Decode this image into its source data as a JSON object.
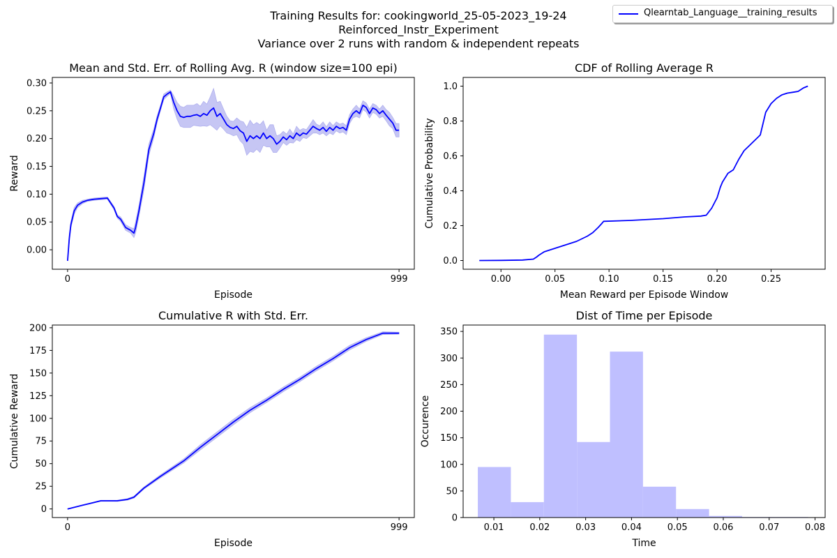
{
  "figure": {
    "title_lines": [
      "Training Results for: cookingworld_25-05-2023_19-24",
      "Reinforced_Instr_Experiment",
      "Variance over 2 runs with random & independent repeats"
    ],
    "legend": {
      "label": "Qlearntab_Language__training_results",
      "color": "#0000ff"
    },
    "line_color": "#0000ff",
    "band_color": "#c6c6f4",
    "hist_color": "#bfbfff"
  },
  "chart_data": [
    {
      "id": "rolling",
      "type": "line",
      "title": "Mean and Std. Err. of Rolling Avg. R (window size=100 epi)",
      "xlabel": "Episode",
      "ylabel": "Reward",
      "xlim": [
        -46,
        1045
      ],
      "ylim": [
        -0.035,
        0.31
      ],
      "xticks": [
        0,
        999
      ],
      "xtick_labels": [
        "0",
        "999"
      ],
      "yticks": [
        0.0,
        0.05,
        0.1,
        0.15,
        0.2,
        0.25,
        0.3
      ],
      "ytick_labels": [
        "0.00",
        "0.05",
        "0.10",
        "0.15",
        "0.20",
        "0.25",
        "0.30"
      ],
      "series": [
        {
          "x": [
            0,
            5,
            10,
            20,
            30,
            45,
            60,
            80,
            100,
            120,
            140,
            150,
            160,
            175,
            190,
            200,
            205,
            215,
            230,
            245,
            260,
            270,
            280,
            290,
            300,
            310,
            320,
            330,
            340,
            350,
            360,
            370,
            380,
            390,
            400,
            410,
            420,
            430,
            440,
            450,
            460,
            470,
            480,
            490,
            500,
            510,
            520,
            530,
            540,
            550,
            560,
            570,
            580,
            590,
            600,
            610,
            620,
            630,
            640,
            650,
            660,
            670,
            680,
            690,
            700,
            710,
            720,
            730,
            740,
            750,
            760,
            770,
            780,
            790,
            800,
            810,
            820,
            830,
            840,
            850,
            860,
            870,
            880,
            890,
            900,
            910,
            920,
            930,
            940,
            950,
            960,
            970,
            980,
            990,
            999
          ],
          "y": [
            -0.02,
            0.02,
            0.045,
            0.07,
            0.08,
            0.086,
            0.089,
            0.091,
            0.092,
            0.093,
            0.075,
            0.06,
            0.055,
            0.04,
            0.035,
            0.03,
            0.04,
            0.07,
            0.12,
            0.18,
            0.21,
            0.235,
            0.255,
            0.275,
            0.28,
            0.284,
            0.265,
            0.25,
            0.24,
            0.238,
            0.24,
            0.24,
            0.242,
            0.243,
            0.24,
            0.245,
            0.242,
            0.25,
            0.255,
            0.24,
            0.245,
            0.235,
            0.225,
            0.22,
            0.218,
            0.222,
            0.214,
            0.21,
            0.195,
            0.205,
            0.2,
            0.205,
            0.2,
            0.21,
            0.2,
            0.205,
            0.2,
            0.19,
            0.195,
            0.203,
            0.198,
            0.205,
            0.2,
            0.21,
            0.205,
            0.21,
            0.208,
            0.215,
            0.222,
            0.218,
            0.215,
            0.22,
            0.213,
            0.22,
            0.215,
            0.222,
            0.218,
            0.22,
            0.215,
            0.235,
            0.245,
            0.25,
            0.245,
            0.26,
            0.256,
            0.245,
            0.255,
            0.252,
            0.245,
            0.25,
            0.242,
            0.235,
            0.228,
            0.215,
            0.215
          ],
          "err": [
            0.0,
            0.008,
            0.006,
            0.006,
            0.004,
            0.003,
            0.002,
            0.002,
            0.002,
            0.002,
            0.003,
            0.003,
            0.004,
            0.005,
            0.005,
            0.008,
            0.01,
            0.01,
            0.012,
            0.01,
            0.008,
            0.006,
            0.005,
            0.005,
            0.004,
            0.003,
            0.012,
            0.015,
            0.018,
            0.018,
            0.02,
            0.02,
            0.018,
            0.02,
            0.018,
            0.022,
            0.02,
            0.025,
            0.035,
            0.025,
            0.022,
            0.018,
            0.015,
            0.012,
            0.013,
            0.015,
            0.018,
            0.02,
            0.025,
            0.028,
            0.025,
            0.024,
            0.025,
            0.022,
            0.015,
            0.02,
            0.025,
            0.015,
            0.012,
            0.01,
            0.01,
            0.012,
            0.008,
            0.012,
            0.01,
            0.008,
            0.008,
            0.01,
            0.012,
            0.008,
            0.008,
            0.01,
            0.008,
            0.01,
            0.008,
            0.008,
            0.008,
            0.008,
            0.008,
            0.008,
            0.008,
            0.01,
            0.008,
            0.008,
            0.008,
            0.008,
            0.008,
            0.008,
            0.008,
            0.01,
            0.01,
            0.012,
            0.01,
            0.012,
            0.012
          ]
        }
      ]
    },
    {
      "id": "cdf",
      "type": "line",
      "title": "CDF of Rolling Average R",
      "xlabel": "Mean Reward per Episode Window",
      "ylabel": "Cumulative Probability",
      "xlim": [
        -0.035,
        0.3
      ],
      "ylim": [
        -0.05,
        1.05
      ],
      "xticks": [
        0.0,
        0.05,
        0.1,
        0.15,
        0.2,
        0.25
      ],
      "xtick_labels": [
        "0.00",
        "0.05",
        "0.10",
        "0.15",
        "0.20",
        "0.25"
      ],
      "yticks": [
        0.0,
        0.2,
        0.4,
        0.6,
        0.8,
        1.0
      ],
      "ytick_labels": [
        "0.0",
        "0.2",
        "0.4",
        "0.6",
        "0.8",
        "1.0"
      ],
      "series": [
        {
          "x": [
            -0.02,
            0.0,
            0.02,
            0.03,
            0.033,
            0.035,
            0.04,
            0.045,
            0.05,
            0.06,
            0.07,
            0.08,
            0.085,
            0.09,
            0.093,
            0.095,
            0.12,
            0.15,
            0.17,
            0.185,
            0.19,
            0.195,
            0.2,
            0.203,
            0.205,
            0.208,
            0.21,
            0.215,
            0.22,
            0.225,
            0.23,
            0.235,
            0.24,
            0.245,
            0.25,
            0.255,
            0.26,
            0.265,
            0.27,
            0.275,
            0.28,
            0.284
          ],
          "y": [
            0.0,
            0.001,
            0.003,
            0.008,
            0.02,
            0.03,
            0.05,
            0.06,
            0.07,
            0.09,
            0.11,
            0.14,
            0.16,
            0.19,
            0.21,
            0.225,
            0.23,
            0.24,
            0.25,
            0.255,
            0.26,
            0.3,
            0.36,
            0.42,
            0.45,
            0.48,
            0.5,
            0.52,
            0.58,
            0.63,
            0.66,
            0.69,
            0.72,
            0.85,
            0.9,
            0.93,
            0.95,
            0.96,
            0.965,
            0.97,
            0.99,
            1.0
          ]
        }
      ]
    },
    {
      "id": "cumulative",
      "type": "line",
      "title": "Cumulative R with Std. Err.",
      "xlabel": "Episode",
      "ylabel": "Cumulative Reward",
      "xlim": [
        -46,
        1045
      ],
      "ylim": [
        -9.5,
        203
      ],
      "xticks": [
        0,
        999
      ],
      "xtick_labels": [
        "0",
        "999"
      ],
      "yticks": [
        0,
        25,
        50,
        75,
        100,
        125,
        150,
        175,
        200
      ],
      "ytick_labels": [
        "0",
        "25",
        "50",
        "75",
        "100",
        "125",
        "150",
        "175",
        "200"
      ],
      "series": [
        {
          "x": [
            0,
            50,
            100,
            150,
            180,
            200,
            230,
            280,
            350,
            400,
            450,
            500,
            550,
            600,
            650,
            700,
            750,
            800,
            850,
            900,
            950,
            999
          ],
          "y": [
            0,
            4.5,
            9.0,
            9.0,
            10.5,
            13.0,
            23.0,
            36.0,
            53.0,
            68.0,
            82.0,
            96.0,
            109.0,
            120.0,
            132.0,
            143.0,
            155.0,
            166.0,
            178.0,
            187.0,
            194.0,
            194.0
          ],
          "err": [
            0.2,
            0.3,
            0.5,
            0.6,
            0.8,
            1.0,
            1.2,
            1.6,
            2.2,
            2.8,
            3.0,
            3.0,
            2.8,
            2.5,
            2.5,
            2.5,
            2.5,
            2.5,
            2.5,
            2.0,
            1.5,
            1.0
          ]
        }
      ]
    },
    {
      "id": "time",
      "type": "bar",
      "title": "Dist of Time per Episode",
      "xlabel": "Time",
      "ylabel": "Occurence",
      "xlim": [
        0.0033,
        0.0822
      ],
      "ylim": [
        0,
        362
      ],
      "xticks": [
        0.01,
        0.02,
        0.03,
        0.04,
        0.05,
        0.06,
        0.07,
        0.08
      ],
      "xtick_labels": [
        "0.01",
        "0.02",
        "0.03",
        "0.04",
        "0.05",
        "0.06",
        "0.07",
        "0.08"
      ],
      "yticks": [
        0,
        50,
        100,
        150,
        200,
        250,
        300,
        350
      ],
      "ytick_labels": [
        "0",
        "50",
        "100",
        "150",
        "200",
        "250",
        "300",
        "350"
      ],
      "bin_edges": [
        0.0065,
        0.0137,
        0.0209,
        0.0281,
        0.0353,
        0.0425,
        0.0497,
        0.0569,
        0.0641,
        0.0713,
        0.0785
      ],
      "counts": [
        95,
        29,
        344,
        142,
        312,
        58,
        16,
        3,
        1,
        1
      ]
    }
  ]
}
